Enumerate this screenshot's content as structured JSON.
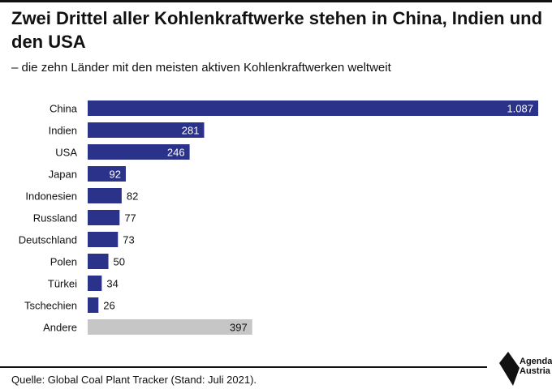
{
  "header": {
    "title": "Zwei Drittel aller Kohlenkraftwerke stehen in China, Indien und den USA",
    "subtitle": "– die zehn Länder mit den meisten aktiven Kohlenkraftwerken weltweit"
  },
  "chart_data": {
    "type": "bar",
    "orientation": "horizontal",
    "categories": [
      "China",
      "Indien",
      "USA",
      "Japan",
      "Indonesien",
      "Russland",
      "Deutschland",
      "Polen",
      "Türkei",
      "Tschechien",
      "Andere"
    ],
    "values": [
      1087,
      281,
      246,
      92,
      82,
      77,
      73,
      50,
      34,
      26,
      397
    ],
    "value_labels": [
      "1.087",
      "281",
      "246",
      "92",
      "82",
      "77",
      "73",
      "50",
      "34",
      "26",
      "397"
    ],
    "colors": {
      "primary": "#2a3389",
      "other": "#c6c6c6"
    },
    "xlim": [
      0,
      1087
    ],
    "grid": false,
    "legend": "none"
  },
  "footer": {
    "source": "Quelle: Global Coal Plant Tracker (Stand: Juli 2021).",
    "logo_line1": "Agenda",
    "logo_line2": "Austria"
  }
}
